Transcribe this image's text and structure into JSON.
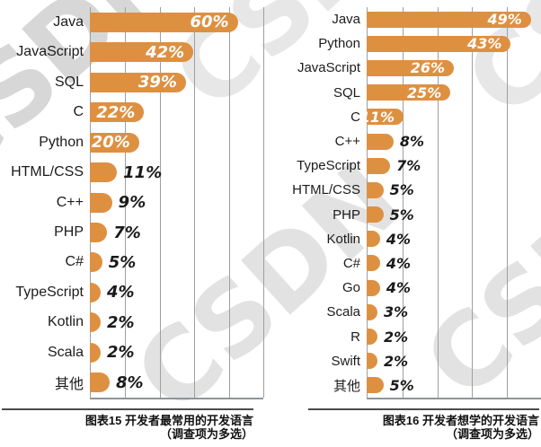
{
  "watermark": {
    "text": "CSDN"
  },
  "chart_data": [
    {
      "type": "bar",
      "orientation": "horizontal",
      "title": "图表15 开发者最常用的开发语言",
      "subtitle": "（调查项为多选）",
      "unit": "%",
      "categories": [
        "Java",
        "JavaScript",
        "SQL",
        "C",
        "Python",
        "HTML/CSS",
        "C++",
        "PHP",
        "C#",
        "TypeScript",
        "Kotlin",
        "Scala",
        "其他"
      ],
      "values": [
        60,
        42,
        39,
        22,
        20,
        11,
        9,
        7,
        5,
        4,
        2,
        2,
        8
      ],
      "xlim": [
        0,
        70
      ],
      "gridline_count": 5,
      "grid_on": true,
      "legend_position": "none",
      "bar_color": "#DE9041",
      "value_label_inside_color": "#FFFFFF",
      "value_label_outside_color": "#1A1A1A"
    },
    {
      "type": "bar",
      "orientation": "horizontal",
      "title": "图表16 开发者想学的开发语言",
      "subtitle": "（调查项为多选）",
      "unit": "%",
      "categories": [
        "Java",
        "Python",
        "JavaScript",
        "SQL",
        "C",
        "C++",
        "TypeScript",
        "HTML/CSS",
        "PHP",
        "Kotlin",
        "C#",
        "Go",
        "Scala",
        "R",
        "Swift",
        "其他"
      ],
      "values": [
        49,
        43,
        26,
        25,
        11,
        8,
        7,
        5,
        5,
        4,
        4,
        4,
        3,
        2,
        2,
        5
      ],
      "xlim": [
        0,
        52
      ],
      "gridline_count": 5,
      "grid_on": true,
      "legend_position": "none",
      "bar_color": "#DE9041",
      "value_label_inside_color": "#FFFFFF",
      "value_label_outside_color": "#1A1A1A"
    }
  ]
}
